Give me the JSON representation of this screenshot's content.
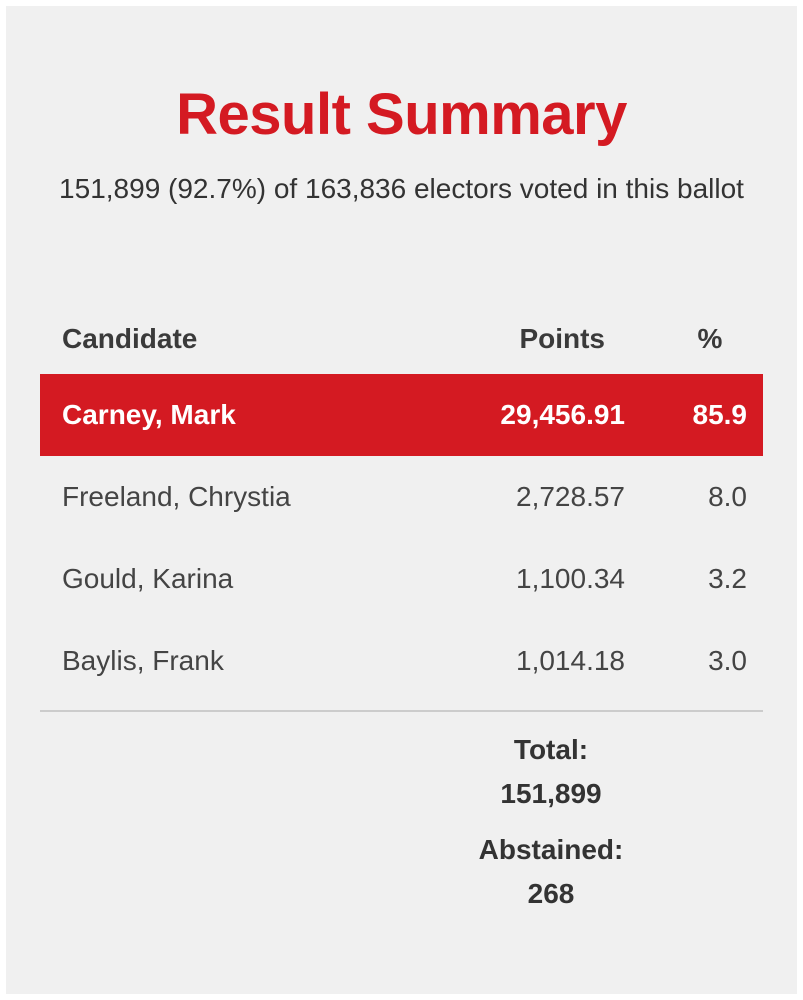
{
  "title": "Result Summary",
  "subtitle": "151,899 (92.7%) of 163,836 electors voted in this ballot",
  "table": {
    "headers": {
      "candidate": "Candidate",
      "points": "Points",
      "percent": "%"
    },
    "rows": [
      {
        "name": "Carney, Mark",
        "points": "29,456.91",
        "percent": "85.9",
        "winner": true
      },
      {
        "name": "Freeland, Chrystia",
        "points": "2,728.57",
        "percent": "8.0",
        "winner": false
      },
      {
        "name": "Gould, Karina",
        "points": "1,100.34",
        "percent": "3.2",
        "winner": false
      },
      {
        "name": "Baylis, Frank",
        "points": "1,014.18",
        "percent": "3.0",
        "winner": false
      }
    ]
  },
  "totals": {
    "total_label": "Total:",
    "total_value": "151,899",
    "abstained_label": "Abstained:",
    "abstained_value": "268"
  },
  "colors": {
    "accent": "#d41a22",
    "background": "#f0f0f0",
    "text": "#444444"
  }
}
